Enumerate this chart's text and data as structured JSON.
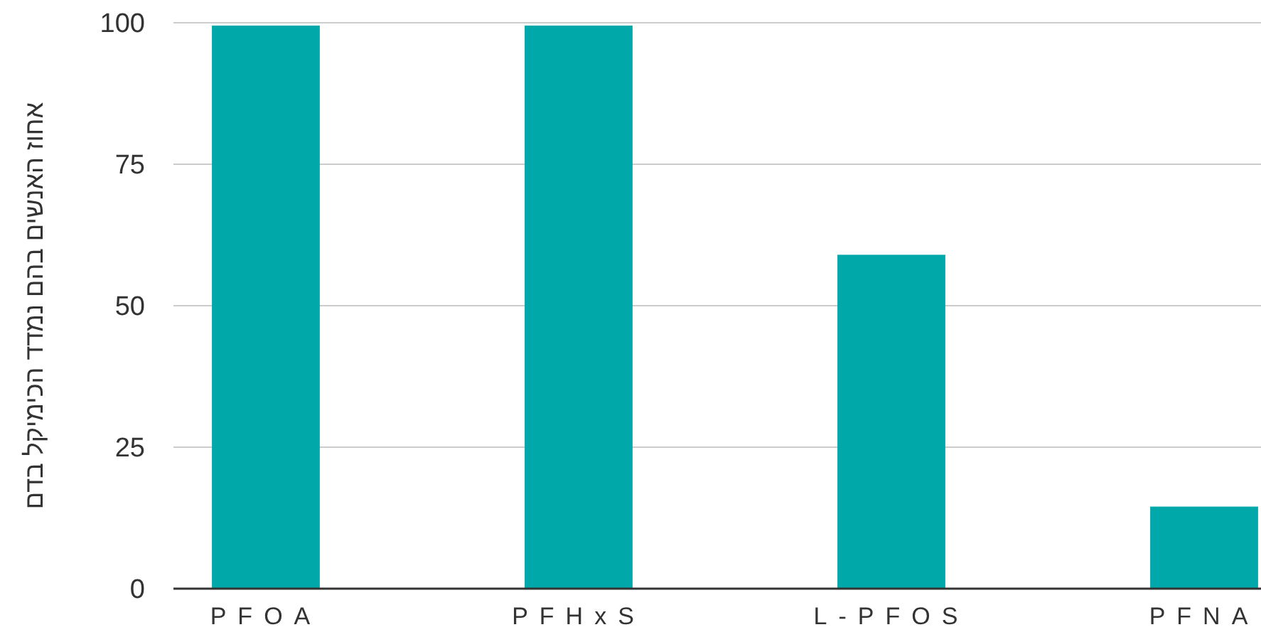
{
  "chart_data": {
    "type": "bar",
    "ylabel": "אחוז האנשים בהם נמדד הכימיקל בדם",
    "categories": [
      "PFOA",
      "PFHxS",
      "L-PFOS",
      "PFNA"
    ],
    "values": [
      99.5,
      99.5,
      59,
      14.5
    ],
    "color": "#00a8aa",
    "ylim": [
      0,
      100
    ],
    "yticks": [
      0,
      25,
      50,
      75,
      100
    ],
    "grid": "y"
  }
}
